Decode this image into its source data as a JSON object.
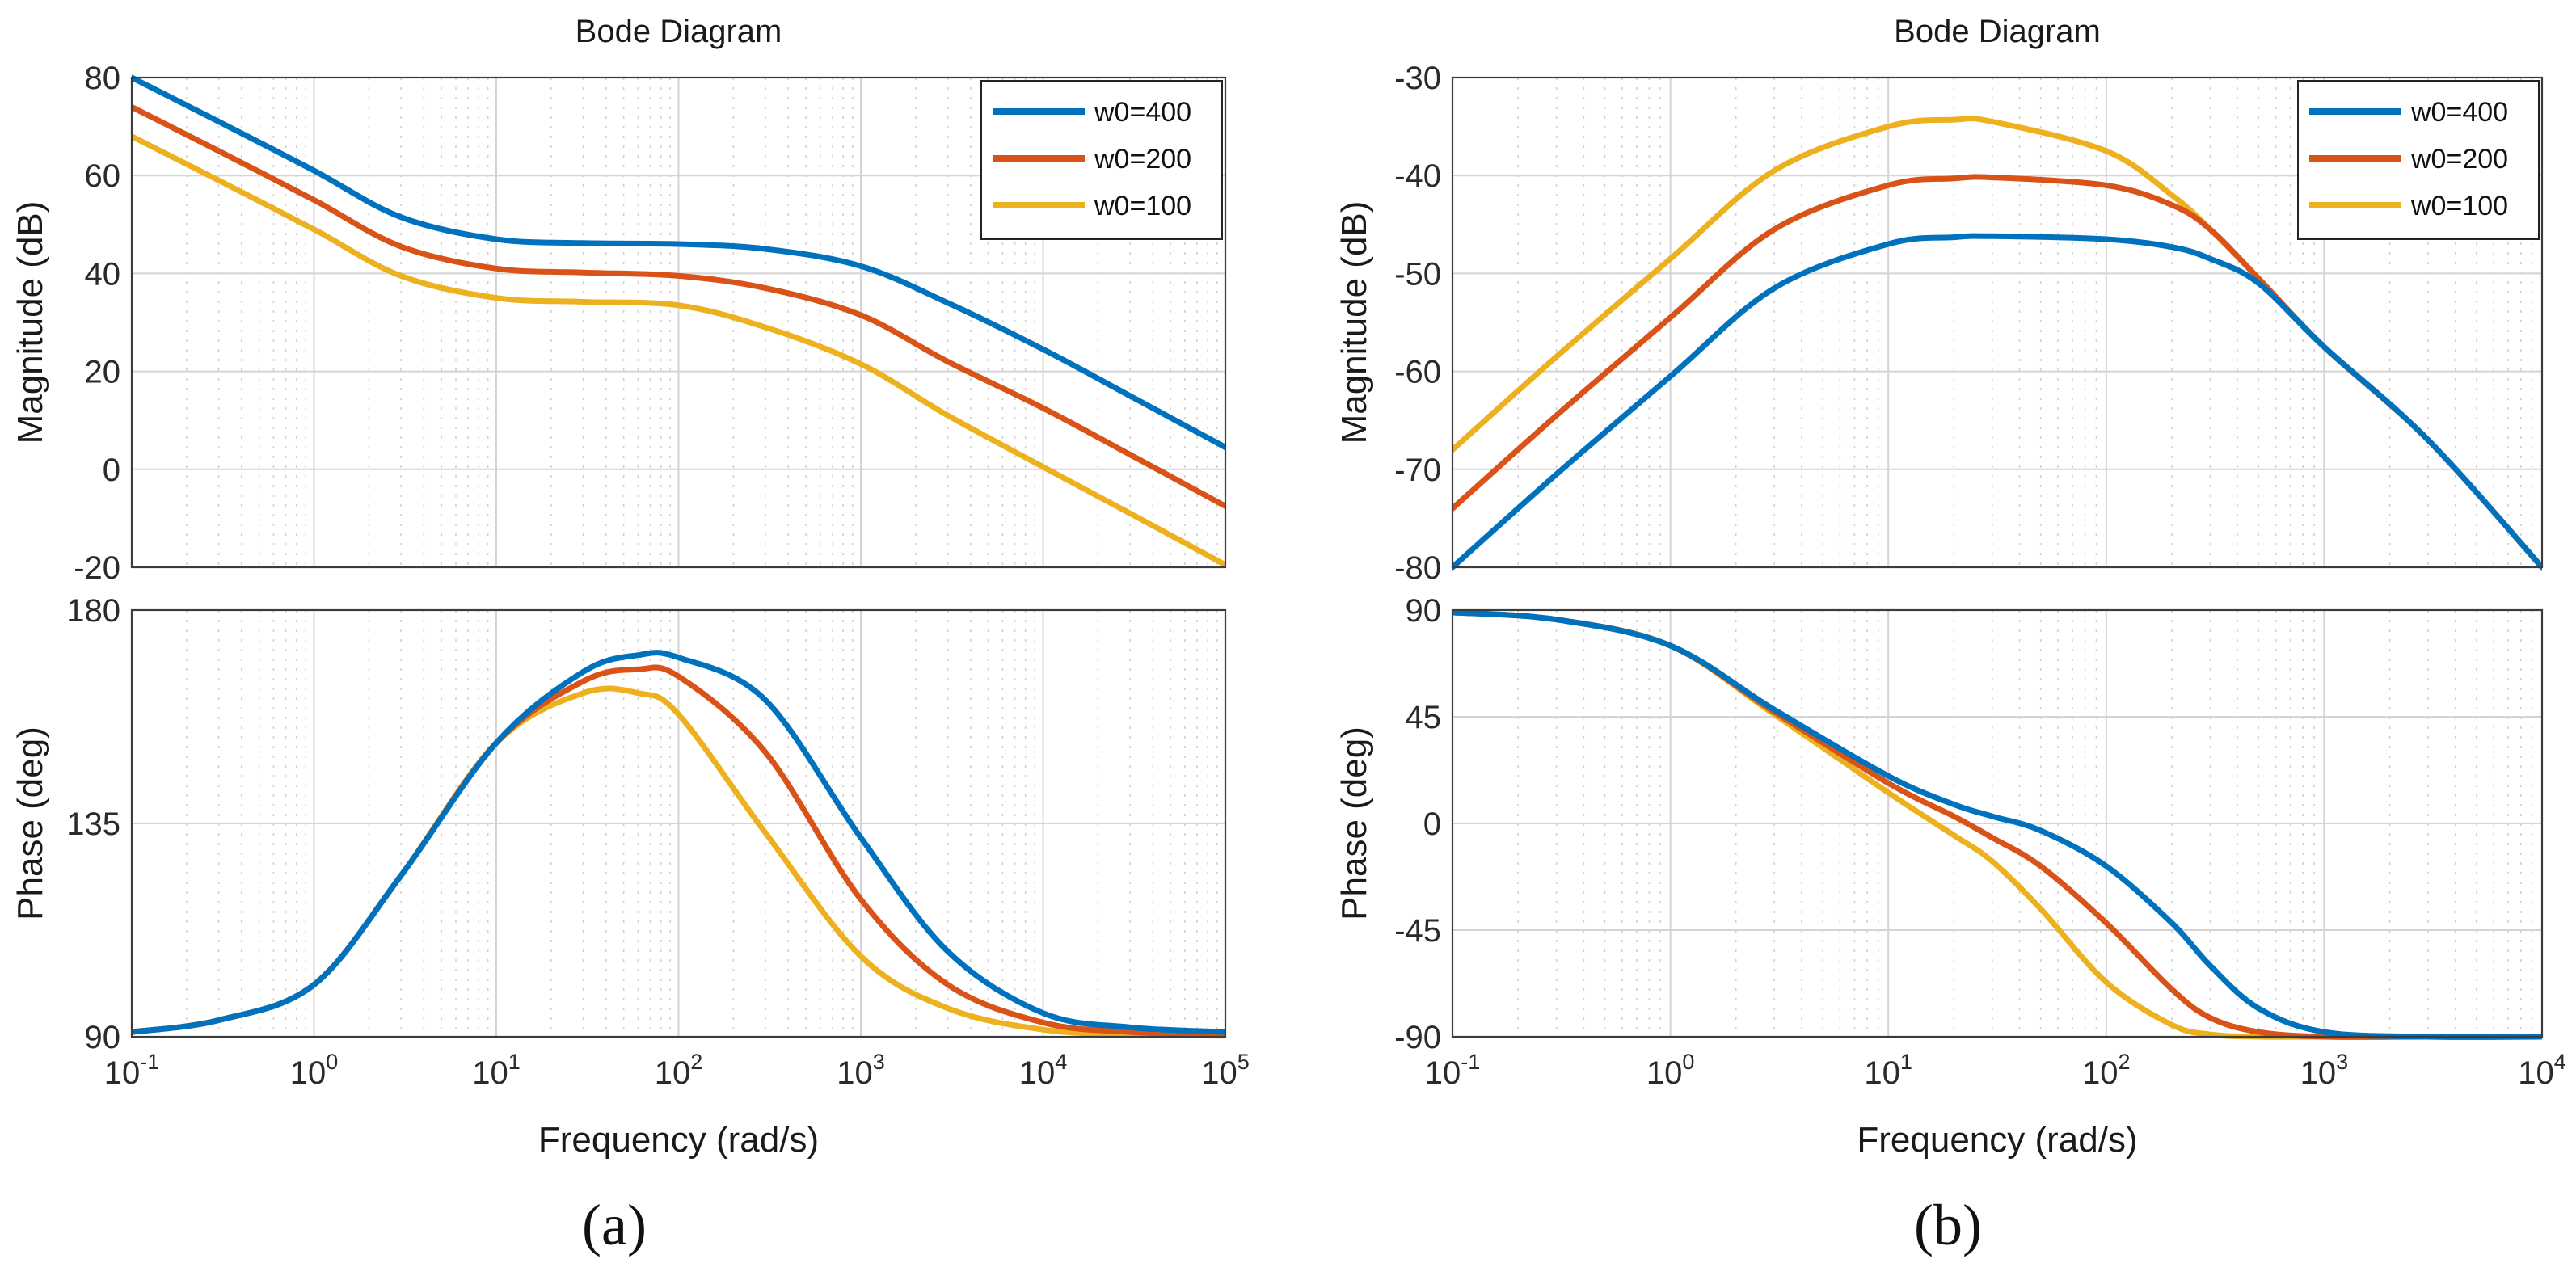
{
  "figure": {
    "panel_labels": [
      "(a)",
      "(b)"
    ]
  },
  "colors": {
    "w0=400": "#0072BD",
    "w0=200": "#D95319",
    "w0=100": "#EDB120"
  },
  "chart_data": [
    {
      "type": "line",
      "panel": "(a)",
      "title": "Bode Diagram",
      "xlabel": "Frequency  (rad/s)",
      "xscale": "log",
      "xlim": [
        0.1,
        100000
      ],
      "x_ticks": [
        "10^-1",
        "10^0",
        "10^1",
        "10^2",
        "10^3",
        "10^4",
        "10^5"
      ],
      "legend": {
        "entries": [
          "w0=400",
          "w0=200",
          "w0=100"
        ],
        "location": "top-right of magnitude plot"
      },
      "grid": true,
      "subplots": [
        {
          "name": "magnitude",
          "ylabel": "Magnitude (dB)",
          "ylim": [
            -20,
            80
          ],
          "y_ticks": [
            80,
            60,
            40,
            20,
            0,
            -20
          ],
          "x": [
            0.1,
            0.3,
            1,
            3,
            10,
            30,
            100,
            300,
            1000,
            3000,
            10000,
            30000,
            100000
          ],
          "series": [
            {
              "name": "w0=400",
              "values": [
                80,
                71,
                61,
                51.5,
                47,
                46.2,
                46,
                45,
                41.5,
                34,
                24.5,
                15,
                4.5
              ]
            },
            {
              "name": "w0=200",
              "values": [
                74,
                65,
                55,
                45.5,
                41,
                40.2,
                39.5,
                37,
                31.5,
                22,
                12.5,
                3,
                -7.5
              ]
            },
            {
              "name": "w0=100",
              "values": [
                68,
                59,
                49,
                39.5,
                35,
                34.2,
                33.5,
                29,
                21.5,
                11,
                0.5,
                -9,
                -19.5
              ]
            }
          ]
        },
        {
          "name": "phase",
          "ylabel": "Phase (deg)",
          "ylim": [
            90,
            180
          ],
          "y_ticks": [
            180,
            135,
            90
          ],
          "x": [
            0.1,
            0.3,
            1,
            3,
            10,
            30,
            60,
            100,
            300,
            1000,
            3000,
            10000,
            30000,
            100000
          ],
          "series": [
            {
              "name": "w0=400",
              "values": [
                91,
                93.5,
                101,
                124,
                152,
                167,
                170.5,
                170,
                161,
                132,
                108,
                95,
                92,
                91
              ]
            },
            {
              "name": "w0=200",
              "values": [
                91,
                93.5,
                101,
                124,
                152,
                165,
                167.5,
                166,
                150,
                119,
                101,
                93,
                91,
                90.5
              ]
            },
            {
              "name": "w0=100",
              "values": [
                91,
                93.5,
                101,
                124,
                152,
                162.5,
                162.5,
                158,
                133,
                107,
                96,
                91.5,
                90.5,
                90.2
              ]
            }
          ]
        }
      ]
    },
    {
      "type": "line",
      "panel": "(b)",
      "title": "Bode Diagram",
      "xlabel": "Frequency  (rad/s)",
      "xscale": "log",
      "xlim": [
        0.1,
        10000
      ],
      "x_ticks": [
        "10^-1",
        "10^0",
        "10^1",
        "10^2",
        "10^3",
        "10^4"
      ],
      "legend": {
        "entries": [
          "w0=400",
          "w0=200",
          "w0=100"
        ],
        "location": "top-right of magnitude plot"
      },
      "grid": true,
      "subplots": [
        {
          "name": "magnitude",
          "ylabel": "Magnitude (dB)",
          "ylim": [
            -80,
            -30
          ],
          "y_ticks": [
            -30,
            -40,
            -50,
            -60,
            -70,
            -80
          ],
          "x": [
            0.1,
            0.3,
            1,
            3,
            10,
            20,
            30,
            100,
            200,
            300,
            500,
            1000,
            3000,
            10000
          ],
          "series": [
            {
              "name": "w0=400",
              "values": [
                -80,
                -70.5,
                -60.5,
                -51.5,
                -47,
                -46.3,
                -46.2,
                -46.5,
                -47.3,
                -48.5,
                -51,
                -57.5,
                -67,
                -80
              ]
            },
            {
              "name": "w0=200",
              "values": [
                -74,
                -64.5,
                -54.5,
                -45.5,
                -41,
                -40.3,
                -40.2,
                -41,
                -43,
                -45.5,
                -50.5,
                -57.5,
                -67,
                -80
              ]
            },
            {
              "name": "w0=100",
              "values": [
                -68,
                -58.5,
                -48.5,
                -39.5,
                -35,
                -34.3,
                -34.5,
                -37.5,
                -42,
                -45.5,
                -50.5,
                -57.5,
                -67,
                -80
              ]
            }
          ]
        },
        {
          "name": "phase",
          "ylabel": "Phase (deg)",
          "ylim": [
            -90,
            90
          ],
          "y_ticks": [
            90,
            45,
            0,
            -45,
            -90
          ],
          "x": [
            0.1,
            0.3,
            1,
            3,
            10,
            20,
            30,
            50,
            100,
            200,
            300,
            500,
            1000,
            3000,
            10000
          ],
          "series": [
            {
              "name": "w0=400",
              "values": [
                89,
                86,
                75,
                48,
                20,
                8,
                3,
                -3,
                -18,
                -42,
                -60,
                -78,
                -88,
                -90,
                -90
              ]
            },
            {
              "name": "w0=200",
              "values": [
                89,
                86,
                75,
                47,
                17,
                3,
                -6,
                -18,
                -42,
                -70,
                -82,
                -88,
                -90,
                -90,
                -90
              ]
            },
            {
              "name": "w0=100",
              "values": [
                89,
                86,
                75,
                46,
                13,
                -5,
                -16,
                -36,
                -67,
                -85,
                -89,
                -90,
                -90,
                -90,
                -90
              ]
            }
          ]
        }
      ]
    }
  ]
}
